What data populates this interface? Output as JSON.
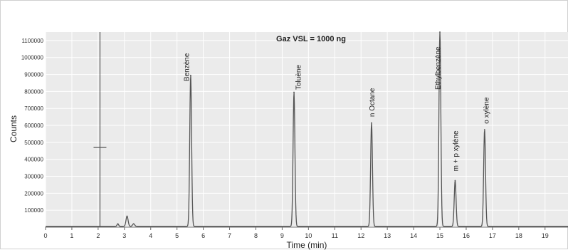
{
  "chart_data": {
    "type": "line",
    "title": "Gaz VSL = 1000 ng",
    "xlabel": "Time (min)",
    "ylabel": "Counts",
    "xlim": [
      0,
      19.9
    ],
    "ylim": [
      0,
      1150000
    ],
    "x_ticks": [
      0,
      1,
      2,
      3,
      4,
      5,
      6,
      7,
      8,
      9,
      10,
      11,
      12,
      13,
      14,
      15,
      16,
      17,
      18,
      19
    ],
    "y_ticks": [
      100000,
      200000,
      300000,
      400000,
      500000,
      600000,
      700000,
      800000,
      900000,
      1000000,
      1100000
    ],
    "grid": true,
    "baseline": 5000,
    "peaks": [
      {
        "name": "",
        "rt": 2.75,
        "height": 15000,
        "width": 0.03
      },
      {
        "name": "",
        "rt": 3.1,
        "height": 60000,
        "width": 0.04
      },
      {
        "name": "",
        "rt": 3.35,
        "height": 15000,
        "width": 0.04
      },
      {
        "name": "Benzène",
        "rt": 5.52,
        "height": 890000,
        "width": 0.035
      },
      {
        "name": "Toluène",
        "rt": 9.45,
        "height": 790000,
        "width": 0.035
      },
      {
        "name": "n Octane",
        "rt": 12.4,
        "height": 610000,
        "width": 0.035
      },
      {
        "name": "Ethylbenzène",
        "rt": 15.0,
        "height": 1150000,
        "width": 0.035
      },
      {
        "name": "m + p xylène",
        "rt": 15.58,
        "height": 270000,
        "width": 0.035
      },
      {
        "name": "o xylène",
        "rt": 16.7,
        "height": 570000,
        "width": 0.035
      }
    ],
    "label_positions": [
      {
        "name": "Benzène",
        "rt": 5.35,
        "label_count": 860000
      },
      {
        "name": "Toluène",
        "rt": 9.6,
        "label_count": 810000
      },
      {
        "name": "n Octane",
        "rt": 12.4,
        "label_count": 650000
      },
      {
        "name": "Ethylbenzène",
        "rt": 14.9,
        "label_count": 810000
      },
      {
        "name": "m + p xylène",
        "rt": 15.58,
        "label_count": 330000
      },
      {
        "name": "o xylène",
        "rt": 16.75,
        "label_count": 610000
      }
    ],
    "solvent_marker_rt": 2.07,
    "solvent_marker_tick_count": 470000,
    "colors": {
      "plot_background": "#ebebeb",
      "grid": "#ffffff",
      "trace": "#555555",
      "peak_line": "#555555"
    }
  }
}
